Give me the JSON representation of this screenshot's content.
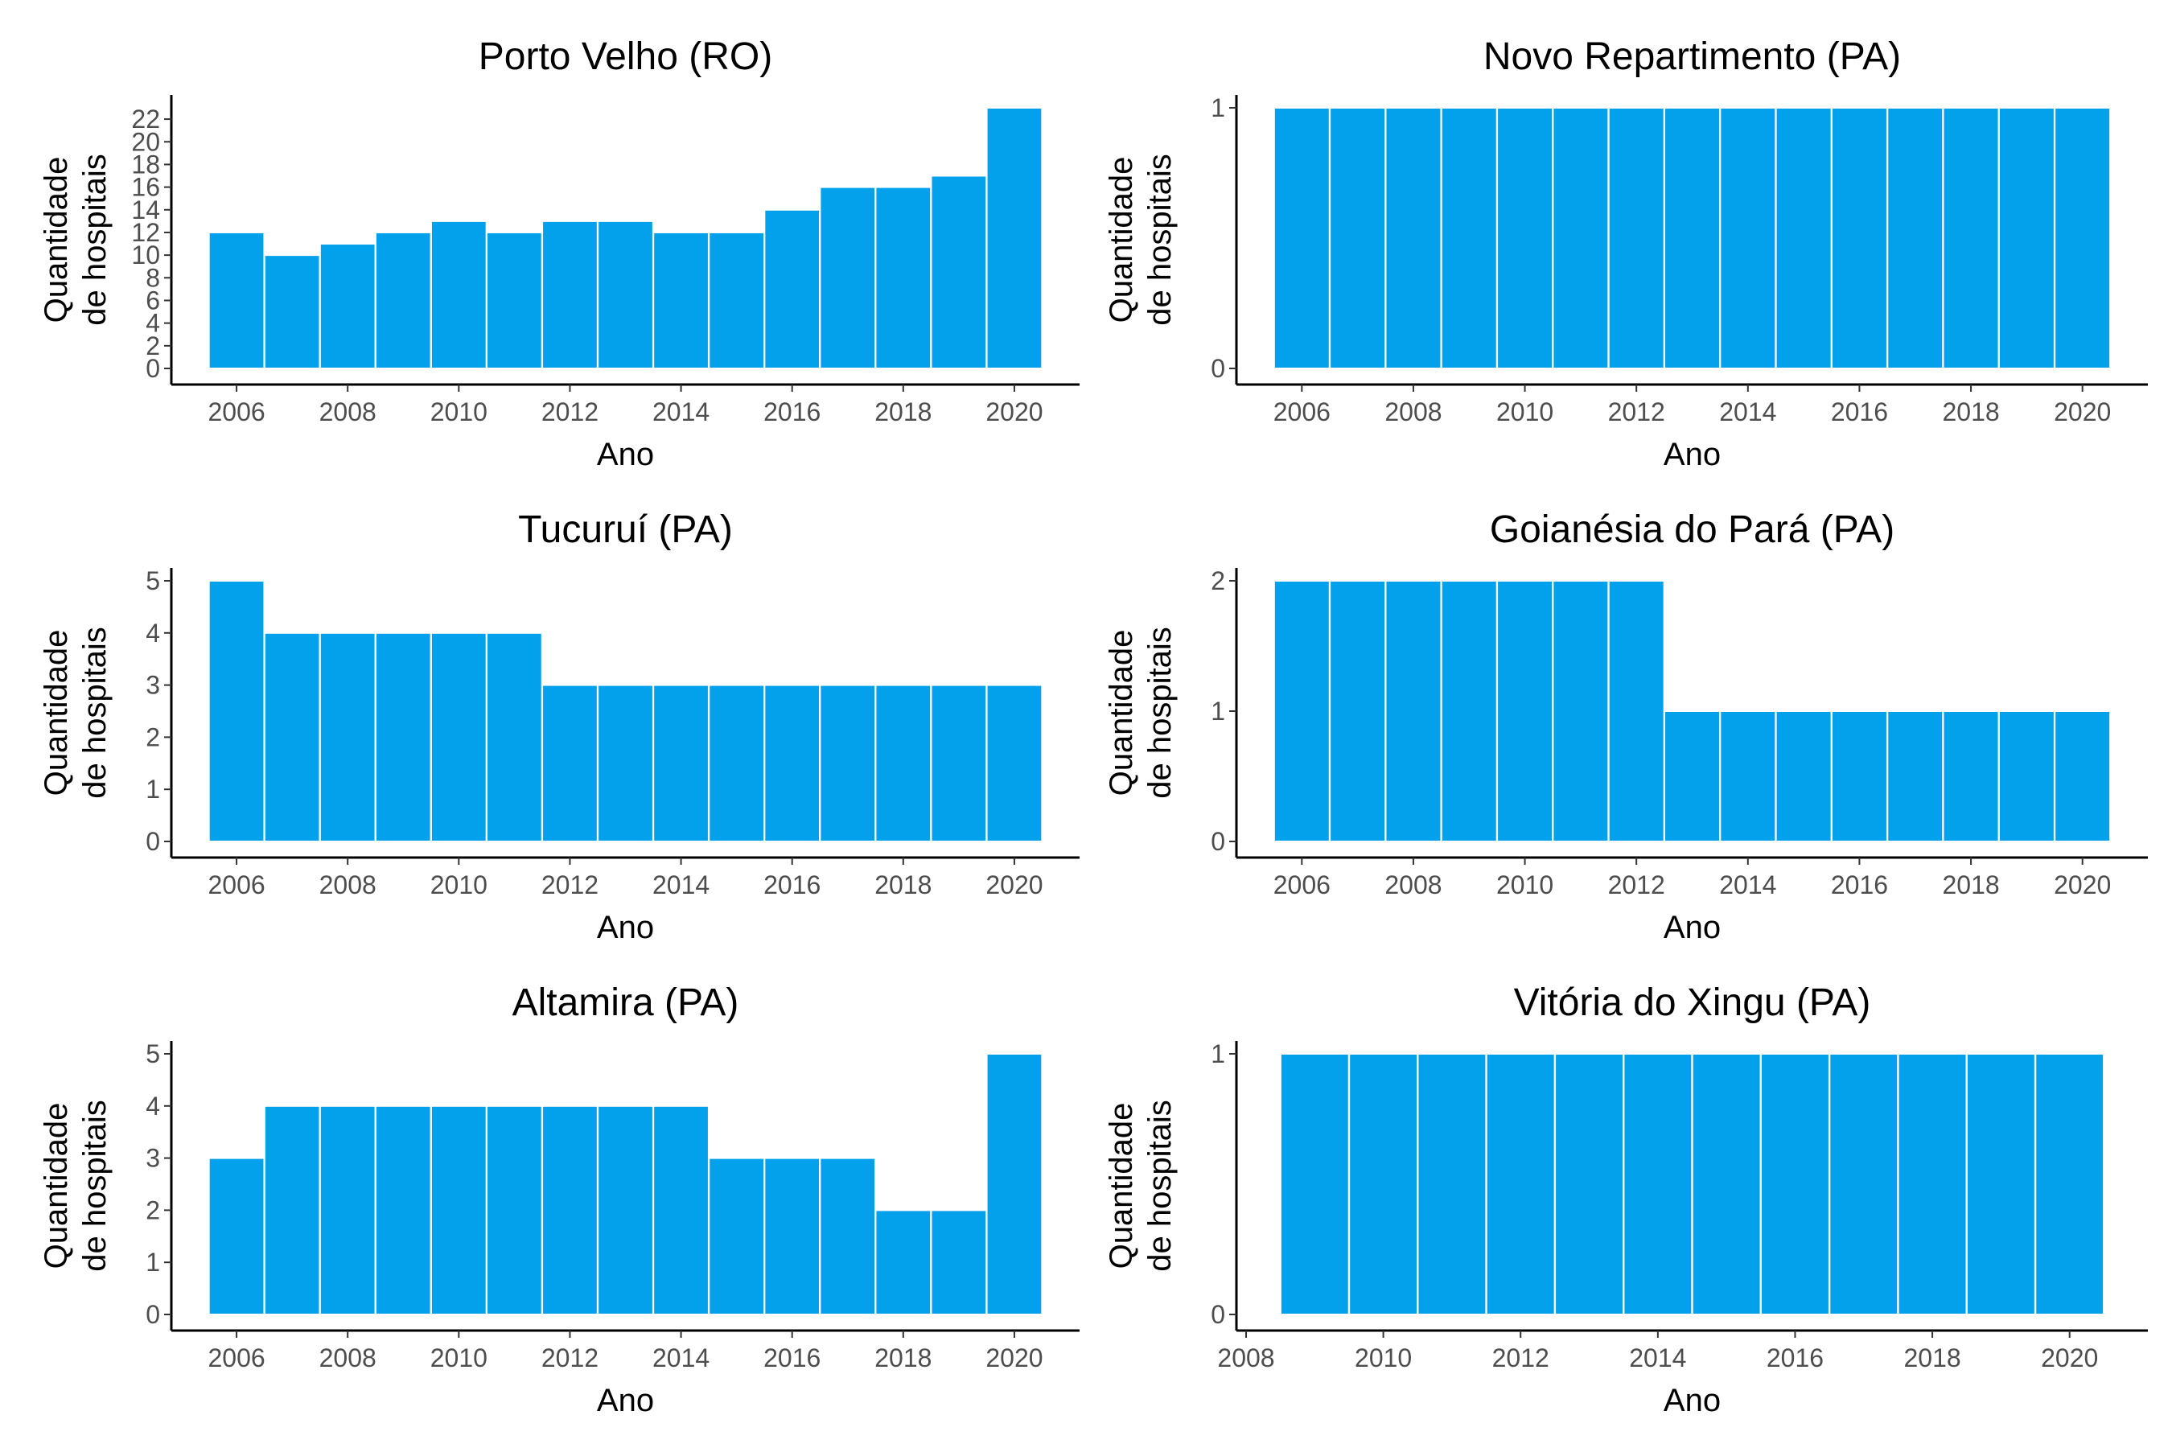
{
  "bar_color": "#03A0EB",
  "chart_data": [
    {
      "type": "bar",
      "title": "Porto Velho (RO)",
      "xlabel": "Ano",
      "ylabel": [
        "Quantidade",
        "de hospitais"
      ],
      "categories": [
        2006,
        2007,
        2008,
        2009,
        2010,
        2011,
        2012,
        2013,
        2014,
        2015,
        2016,
        2017,
        2018,
        2019,
        2020
      ],
      "values": [
        12,
        10,
        11,
        12,
        13,
        12,
        13,
        13,
        12,
        12,
        14,
        16,
        16,
        17,
        23
      ],
      "xlim": [
        2005,
        2021
      ],
      "xticks": [
        "2006",
        "2008",
        "2010",
        "2012",
        "2014",
        "2016",
        "2018",
        "2020"
      ],
      "ylim": [
        0,
        23
      ],
      "yticks": [
        "0",
        "2",
        "4",
        "6",
        "8",
        "10",
        "12",
        "14",
        "16",
        "18",
        "20",
        "22"
      ],
      "grid": false
    },
    {
      "type": "bar",
      "title": "Novo Repartimento (PA)",
      "xlabel": "Ano",
      "ylabel": [
        "Quantidade",
        "de hospitais"
      ],
      "categories": [
        2006,
        2007,
        2008,
        2009,
        2010,
        2011,
        2012,
        2013,
        2014,
        2015,
        2016,
        2017,
        2018,
        2019,
        2020
      ],
      "values": [
        1,
        1,
        1,
        1,
        1,
        1,
        1,
        1,
        1,
        1,
        1,
        1,
        1,
        1,
        1
      ],
      "xlim": [
        2005,
        2021
      ],
      "xticks": [
        "2006",
        "2008",
        "2010",
        "2012",
        "2014",
        "2016",
        "2018",
        "2020"
      ],
      "ylim": [
        0,
        1
      ],
      "yticks": [
        "0",
        "1"
      ],
      "grid": false
    },
    {
      "type": "bar",
      "title": "Tucuruí (PA)",
      "xlabel": "Ano",
      "ylabel": [
        "Quantidade",
        "de hospitais"
      ],
      "categories": [
        2006,
        2007,
        2008,
        2009,
        2010,
        2011,
        2012,
        2013,
        2014,
        2015,
        2016,
        2017,
        2018,
        2019,
        2020
      ],
      "values": [
        5,
        4,
        4,
        4,
        4,
        4,
        3,
        3,
        3,
        3,
        3,
        3,
        3,
        3,
        3
      ],
      "xlim": [
        2005,
        2021
      ],
      "xticks": [
        "2006",
        "2008",
        "2010",
        "2012",
        "2014",
        "2016",
        "2018",
        "2020"
      ],
      "ylim": [
        0,
        5
      ],
      "yticks": [
        "0",
        "1",
        "2",
        "3",
        "4",
        "5"
      ],
      "grid": false
    },
    {
      "type": "bar",
      "title": "Goianésia do Pará (PA)",
      "xlabel": "Ano",
      "ylabel": [
        "Quantidade",
        "de hospitais"
      ],
      "categories": [
        2006,
        2007,
        2008,
        2009,
        2010,
        2011,
        2012,
        2013,
        2014,
        2015,
        2016,
        2017,
        2018,
        2019,
        2020
      ],
      "values": [
        2,
        2,
        2,
        2,
        2,
        2,
        2,
        1,
        1,
        1,
        1,
        1,
        1,
        1,
        1
      ],
      "xlim": [
        2005,
        2021
      ],
      "xticks": [
        "2006",
        "2008",
        "2010",
        "2012",
        "2014",
        "2016",
        "2018",
        "2020"
      ],
      "ylim": [
        0,
        2
      ],
      "yticks": [
        "0",
        "1",
        "2"
      ],
      "grid": false
    },
    {
      "type": "bar",
      "title": "Altamira (PA)",
      "xlabel": "Ano",
      "ylabel": [
        "Quantidade",
        "de hospitais"
      ],
      "categories": [
        2006,
        2007,
        2008,
        2009,
        2010,
        2011,
        2012,
        2013,
        2014,
        2015,
        2016,
        2017,
        2018,
        2019,
        2020
      ],
      "values": [
        3,
        4,
        4,
        4,
        4,
        4,
        4,
        4,
        4,
        3,
        3,
        3,
        2,
        2,
        5
      ],
      "xlim": [
        2005,
        2021
      ],
      "xticks": [
        "2006",
        "2008",
        "2010",
        "2012",
        "2014",
        "2016",
        "2018",
        "2020"
      ],
      "ylim": [
        0,
        5
      ],
      "yticks": [
        "0",
        "1",
        "2",
        "3",
        "4",
        "5"
      ],
      "grid": false
    },
    {
      "type": "bar",
      "title": "Vitória do Xingu (PA)",
      "xlabel": "Ano",
      "ylabel": [
        "Quantidade",
        "de hospitais"
      ],
      "categories": [
        2009,
        2010,
        2011,
        2012,
        2013,
        2014,
        2015,
        2016,
        2017,
        2018,
        2019,
        2020
      ],
      "values": [
        1,
        1,
        1,
        1,
        1,
        1,
        1,
        1,
        1,
        1,
        1,
        1
      ],
      "xlim": [
        2008,
        2021
      ],
      "xticks": [
        "2008",
        "2010",
        "2012",
        "2014",
        "2016",
        "2018",
        "2020"
      ],
      "ylim": [
        0,
        1
      ],
      "yticks": [
        "0",
        "1"
      ],
      "grid": false
    }
  ]
}
